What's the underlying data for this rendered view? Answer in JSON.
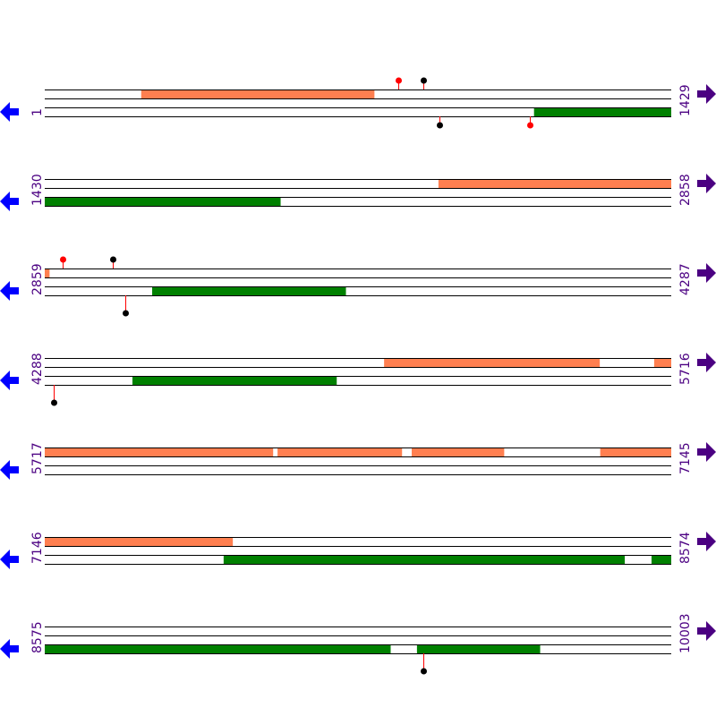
{
  "colors": {
    "forward_feature": "#ff7f50",
    "reverse_feature": "#008000",
    "strand_line": "#000000",
    "stem": "#ff0000",
    "label": "#4b0082",
    "left_arrow": "#0000ff",
    "right_arrow": "#4b0082"
  },
  "icons": {
    "left": "arrow-left-icon",
    "right": "arrow-right-icon"
  },
  "rows": [
    {
      "start": "1",
      "end": "1429",
      "s": 1,
      "e": 1429,
      "fwd": [
        [
          221,
          752
        ]
      ],
      "rev": [
        [
          1117,
          1429
        ]
      ],
      "pins": [
        {
          "pos": 807,
          "side": "top",
          "head": "#ff0000",
          "long": false
        },
        {
          "pos": 864,
          "side": "top",
          "head": "#000000",
          "long": false
        },
        {
          "pos": 901,
          "side": "bottom",
          "head": "#000000",
          "long": false
        },
        {
          "pos": 1107,
          "side": "bottom",
          "head": "#ff0000",
          "long": false
        }
      ]
    },
    {
      "start": "1430",
      "end": "2858",
      "s": 1430,
      "e": 2858,
      "fwd": [
        [
          2328,
          2858
        ]
      ],
      "rev": [
        [
          1430,
          1967
        ]
      ],
      "pins": []
    },
    {
      "start": "2859",
      "end": "4287",
      "s": 2859,
      "e": 4287,
      "fwd": [
        [
          2859,
          2869
        ]
      ],
      "rev": [
        [
          3104,
          3545
        ]
      ],
      "pins": [
        {
          "pos": 2900,
          "side": "top",
          "head": "#ff0000",
          "long": false
        },
        {
          "pos": 3014,
          "side": "top",
          "head": "#000000",
          "long": false
        },
        {
          "pos": 3043,
          "side": "bottom",
          "head": "#000000",
          "long": true
        }
      ]
    },
    {
      "start": "4288",
      "end": "5716",
      "s": 4288,
      "e": 5716,
      "fwd": [
        [
          5062,
          5553
        ],
        [
          5678,
          5716
        ]
      ],
      "rev": [
        [
          4488,
          4953
        ]
      ],
      "pins": [
        {
          "pos": 4308,
          "side": "bottom",
          "head": "#000000",
          "long": true
        }
      ]
    },
    {
      "start": "5717",
      "end": "7145",
      "s": 5717,
      "e": 7145,
      "fwd": [
        [
          5717,
          6237
        ],
        [
          6248,
          6531
        ],
        [
          6554,
          6764
        ],
        [
          6984,
          7145
        ]
      ],
      "rev": [],
      "pins": []
    },
    {
      "start": "7146",
      "end": "8574",
      "s": 7146,
      "e": 8574,
      "fwd": [
        [
          7146,
          7574
        ]
      ],
      "rev": [
        [
          7554,
          8468
        ],
        [
          8530,
          8574
        ]
      ],
      "pins": []
    },
    {
      "start": "8575",
      "end": "10003",
      "s": 8575,
      "e": 10003,
      "fwd": [],
      "rev": [
        [
          8575,
          9363
        ],
        [
          9424,
          9704
        ]
      ],
      "pins": [
        {
          "pos": 9438,
          "side": "bottom",
          "head": "#000000",
          "long": true
        }
      ]
    }
  ]
}
